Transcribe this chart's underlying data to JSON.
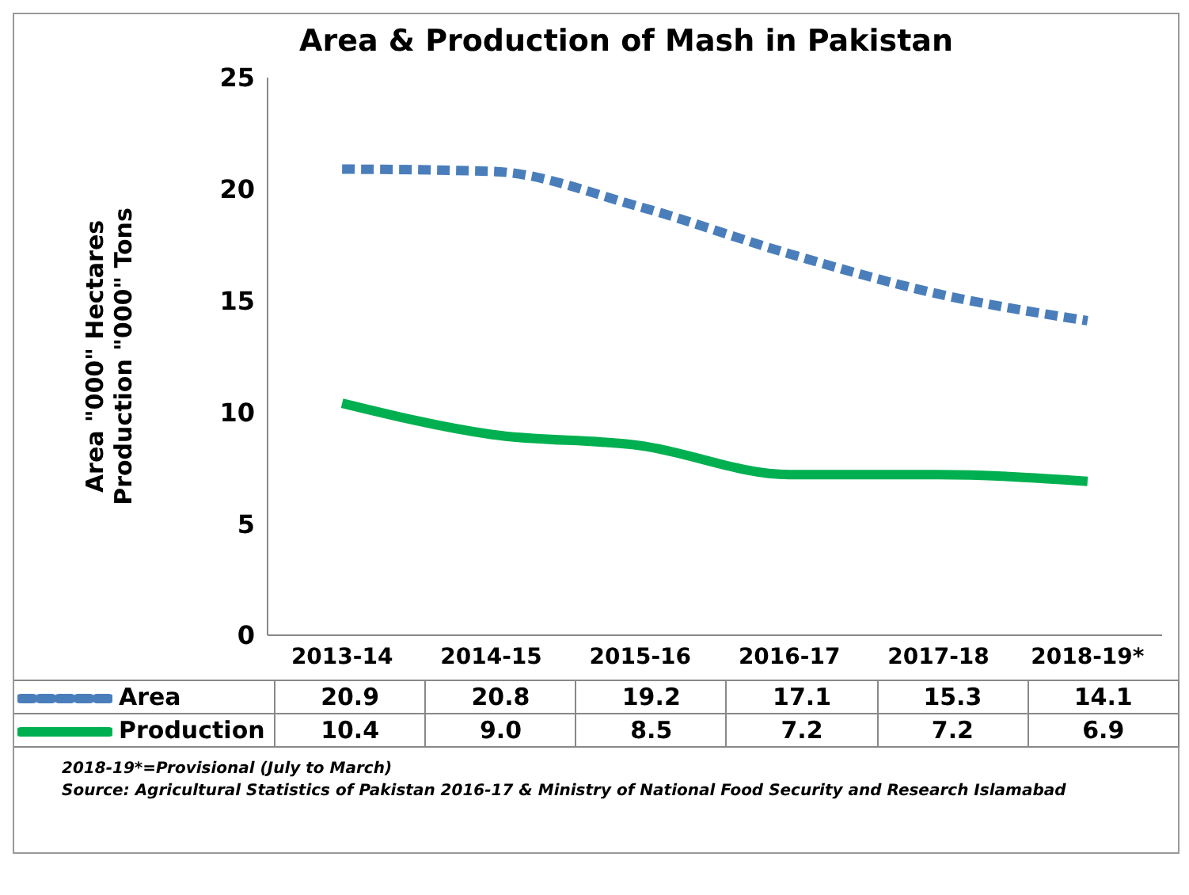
{
  "chart_data": {
    "type": "line",
    "title": "Area & Production of Mash in Pakistan",
    "ylabel": "Area \"000\" Hectares\nProduction \"000\" Tons",
    "categories": [
      "2013-14",
      "2014-15",
      "2015-16",
      "2016-17",
      "2017-18",
      "2018-19*"
    ],
    "series": [
      {
        "name": "Area",
        "color": "#4a7ebb",
        "line_style": "dashed",
        "values": [
          20.9,
          20.8,
          19.2,
          17.1,
          15.3,
          14.1
        ],
        "value_labels": [
          "20.9",
          "20.8",
          "19.2",
          "17.1",
          "15.3",
          "14.1"
        ]
      },
      {
        "name": "Production",
        "color": "#00b050",
        "line_style": "solid",
        "values": [
          10.4,
          9.0,
          8.5,
          7.2,
          7.2,
          6.9
        ],
        "value_labels": [
          "10.4",
          "9.0",
          "8.5",
          "7.2",
          "7.2",
          "6.9"
        ]
      }
    ],
    "ylim": [
      0,
      25
    ],
    "yticks": [
      0,
      5,
      10,
      15,
      20,
      25
    ],
    "grid": false,
    "legend": "bottom",
    "marker": "none",
    "annotations": [
      "2018-19*=Provisional (July to March)",
      "Source: Agricultural Statistics of Pakistan 2016-17 & Ministry of National Food Security and Research Islamabad"
    ]
  }
}
